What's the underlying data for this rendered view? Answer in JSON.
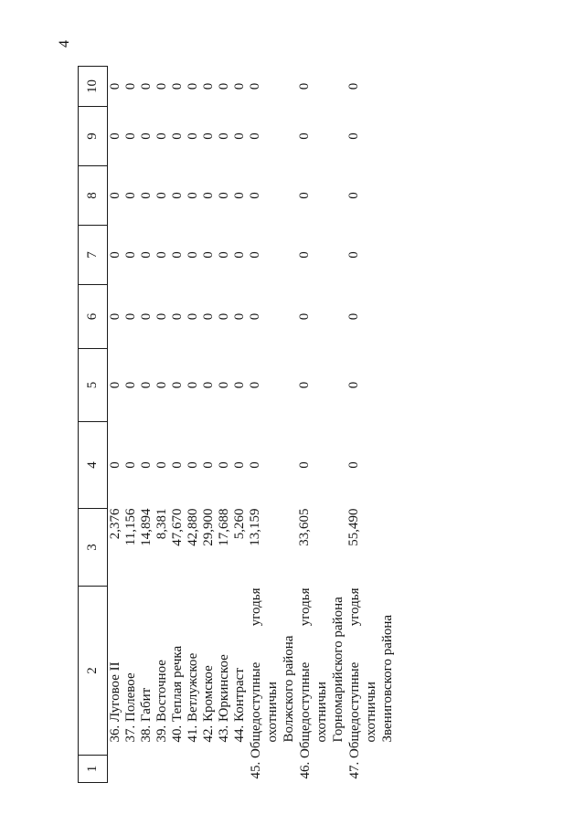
{
  "page_number": "4",
  "table": {
    "headers": [
      "1",
      "2",
      "3",
      "4",
      "5",
      "6",
      "7",
      "8",
      "9",
      "10"
    ],
    "rows": [
      {
        "num": "36.",
        "name": "Луговое II",
        "area": "2,376",
        "values": [
          "0",
          "0",
          "0",
          "0",
          "0",
          "0",
          "0"
        ]
      },
      {
        "num": "37.",
        "name": "Полевое",
        "area": "11,156",
        "values": [
          "0",
          "0",
          "0",
          "0",
          "0",
          "0",
          "0"
        ]
      },
      {
        "num": "38.",
        "name": "Габит",
        "area": "14,894",
        "values": [
          "0",
          "0",
          "0",
          "0",
          "0",
          "0",
          "0"
        ]
      },
      {
        "num": "39.",
        "name": "Восточное",
        "area": "8,381",
        "values": [
          "0",
          "0",
          "0",
          "0",
          "0",
          "0",
          "0"
        ]
      },
      {
        "num": "40.",
        "name": "Теплая речка",
        "area": "47,670",
        "values": [
          "0",
          "0",
          "0",
          "0",
          "0",
          "0",
          "0"
        ]
      },
      {
        "num": "41.",
        "name": "Ветлужское",
        "area": "42,880",
        "values": [
          "0",
          "0",
          "0",
          "0",
          "0",
          "0",
          "0"
        ]
      },
      {
        "num": "42.",
        "name": "Кромское",
        "area": "29,900",
        "values": [
          "0",
          "0",
          "0",
          "0",
          "0",
          "0",
          "0"
        ]
      },
      {
        "num": "43.",
        "name": "Юркинское",
        "area": "17,688",
        "values": [
          "0",
          "0",
          "0",
          "0",
          "0",
          "0",
          "0"
        ]
      },
      {
        "num": "44.",
        "name": "Контраст",
        "area": "5,260",
        "values": [
          "0",
          "0",
          "0",
          "0",
          "0",
          "0",
          "0"
        ]
      },
      {
        "num": "45.",
        "name": "Общедоступные охотничьи угодья Волжского района",
        "lines": {
          "l1_left": "Общедоступные",
          "l1_right": "угодья",
          "l2": "охотничьи",
          "l3": "Волжского района"
        },
        "area": "13,159",
        "values": [
          "0",
          "0",
          "0",
          "0",
          "0",
          "0",
          "0"
        ]
      },
      {
        "num": "46.",
        "name": "Общедоступные охотничьи угодья Горномарийского района",
        "lines": {
          "l1_left": "Общедоступные",
          "l1_right": "угодья",
          "l2": "охотничьи",
          "l3": "Горномарийского района"
        },
        "area": "33,605",
        "values": [
          "0",
          "0",
          "0",
          "0",
          "0",
          "0",
          "0"
        ]
      },
      {
        "num": "47.",
        "name": "Общедоступные охотничьи угодья Звениговского района",
        "lines": {
          "l1_left": "Общедоступные",
          "l1_right": "угодья",
          "l2": "охотничьи",
          "l3": "Звениговского района"
        },
        "area": "55,490",
        "values": [
          "0",
          "0",
          "0",
          "0",
          "0",
          "0",
          "0"
        ]
      }
    ]
  }
}
